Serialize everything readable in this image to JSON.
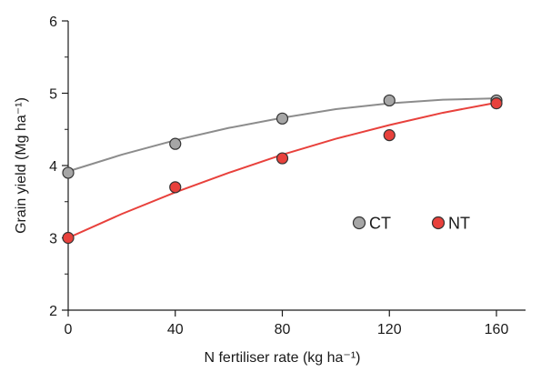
{
  "chart_data": {
    "type": "scatter",
    "title": "",
    "xlabel": "N fertiliser rate (kg ha⁻¹)",
    "ylabel": "Grain yield (Mg ha⁻¹)",
    "xlim": [
      0,
      160
    ],
    "ylim": [
      2,
      6
    ],
    "x_ticks": [
      0,
      40,
      80,
      120,
      160
    ],
    "y_ticks": [
      2,
      3,
      4,
      5,
      6
    ],
    "y_minor_step": 0.5,
    "grid": false,
    "legend_placement": "center-right",
    "series": [
      {
        "name": "CT",
        "color": "#a6a6a6",
        "line_color": "#8c8c8c",
        "x": [
          0,
          40,
          80,
          120,
          160
        ],
        "y": [
          3.9,
          4.3,
          4.65,
          4.9,
          4.9
        ],
        "fit_curve": {
          "x": [
            0,
            20,
            40,
            60,
            80,
            100,
            120,
            140,
            160
          ],
          "y": [
            3.92,
            4.15,
            4.35,
            4.52,
            4.66,
            4.78,
            4.86,
            4.91,
            4.93
          ]
        }
      },
      {
        "name": "NT",
        "color": "#e8413c",
        "line_color": "#e8413c",
        "x": [
          0,
          40,
          80,
          120,
          160
        ],
        "y": [
          3.0,
          3.7,
          4.1,
          4.42,
          4.86
        ],
        "fit_curve": {
          "x": [
            0,
            20,
            40,
            60,
            80,
            100,
            120,
            140,
            160
          ],
          "y": [
            3.0,
            3.33,
            3.63,
            3.9,
            4.15,
            4.37,
            4.56,
            4.73,
            4.87
          ]
        }
      }
    ]
  }
}
